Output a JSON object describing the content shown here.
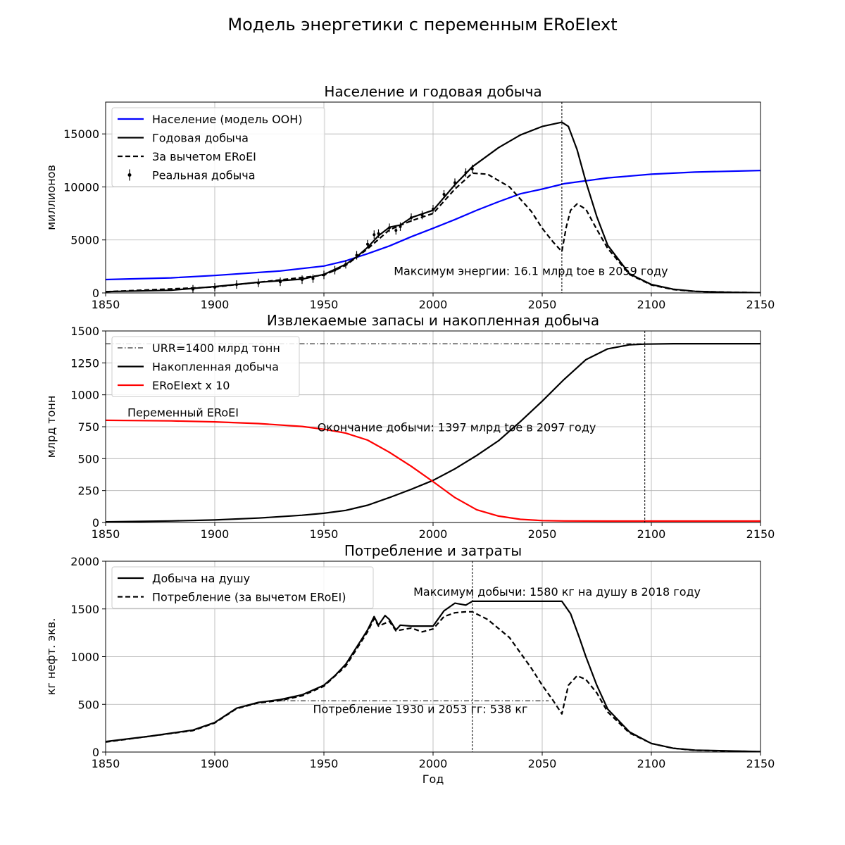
{
  "suptitle": "Модель энергетики с переменным ERoEIext",
  "xlabel": "Год",
  "chart_data": [
    {
      "type": "line",
      "title": "Население и годовая добыча",
      "ylabel": "миллионов",
      "xlim": [
        1850,
        2150
      ],
      "ylim": [
        0,
        18000
      ],
      "xticks": [
        1850,
        1900,
        1950,
        2000,
        2050,
        2100,
        2150
      ],
      "yticks": [
        0,
        5000,
        10000,
        15000
      ],
      "grid": true,
      "legend_position": "top-left",
      "series": [
        {
          "name": "Население (модель ООН)",
          "color": "#0000ff",
          "style": "solid",
          "x": [
            1850,
            1880,
            1900,
            1930,
            1950,
            1960,
            1970,
            1980,
            1990,
            2000,
            2010,
            2020,
            2030,
            2040,
            2050,
            2060,
            2080,
            2100,
            2120,
            2150
          ],
          "y": [
            1260,
            1420,
            1650,
            2070,
            2540,
            3030,
            3700,
            4430,
            5300,
            6100,
            6920,
            7800,
            8600,
            9350,
            9800,
            10300,
            10850,
            11200,
            11400,
            11550
          ]
        },
        {
          "name": "Годовая добыча",
          "color": "#000000",
          "style": "solid",
          "x": [
            1850,
            1880,
            1900,
            1920,
            1940,
            1950,
            1960,
            1965,
            1970,
            1975,
            1980,
            1985,
            1990,
            2000,
            2010,
            2018,
            2030,
            2040,
            2050,
            2059,
            2062,
            2066,
            2070,
            2075,
            2080,
            2090,
            2100,
            2110,
            2120,
            2135,
            2150
          ],
          "y": [
            120,
            250,
            600,
            1000,
            1300,
            1750,
            2700,
            3400,
            4300,
            5400,
            6200,
            6400,
            7100,
            7800,
            10200,
            11900,
            13700,
            14900,
            15700,
            16100,
            15700,
            13500,
            10500,
            7200,
            4500,
            1800,
            800,
            350,
            150,
            60,
            20
          ]
        },
        {
          "name": "За вычетом ERoEI",
          "color": "#000000",
          "style": "dashed",
          "x": [
            1850,
            1900,
            1950,
            1960,
            1970,
            1980,
            1990,
            2000,
            2010,
            2018,
            2025,
            2035,
            2045,
            2050,
            2055,
            2059,
            2061,
            2063,
            2066,
            2070,
            2075,
            2080,
            2090,
            2100,
            2110,
            2120,
            2150
          ],
          "y": [
            110,
            560,
            1680,
            2600,
            4150,
            5950,
            6800,
            7500,
            9800,
            11300,
            11200,
            10000,
            7700,
            6100,
            4800,
            3900,
            6200,
            7800,
            8400,
            7900,
            6000,
            4200,
            1750,
            750,
            320,
            140,
            15
          ]
        },
        {
          "name": "Реальная добыча",
          "color": "#000000",
          "style": "errorbar",
          "x": [
            1890,
            1900,
            1910,
            1920,
            1930,
            1940,
            1945,
            1950,
            1955,
            1960,
            1965,
            1970,
            1973,
            1975,
            1980,
            1983,
            1985,
            1990,
            1995,
            2000,
            2005,
            2010,
            2015,
            2018
          ],
          "y": [
            350,
            530,
            790,
            950,
            1050,
            1250,
            1350,
            1700,
            2150,
            2700,
            3550,
            4600,
            5500,
            5600,
            6150,
            5900,
            6250,
            7100,
            7350,
            7900,
            9300,
            10400,
            11350,
            11700
          ],
          "yerr": 400
        }
      ],
      "vlines": [
        {
          "x": 2059,
          "style": "dashed"
        }
      ],
      "annotations": [
        {
          "text": "Максимум энергии: 16.1 млрд toe в 2059 году",
          "x": 1982,
          "y": 1700
        }
      ]
    },
    {
      "type": "line",
      "title": "Извлекаемые запасы и накопленная добыча",
      "ylabel": "млрд тонн",
      "xlim": [
        1850,
        2150
      ],
      "ylim": [
        0,
        1500
      ],
      "xticks": [
        1850,
        1900,
        1950,
        2000,
        2050,
        2100,
        2150
      ],
      "yticks": [
        0,
        250,
        500,
        750,
        1000,
        1250,
        1500
      ],
      "grid": true,
      "legend_position": "top-left",
      "series": [
        {
          "name": "URR=1400 млрд тонн",
          "color": "#000000",
          "style": "dashdot",
          "x": [
            1850,
            2150
          ],
          "y": [
            1400,
            1400
          ]
        },
        {
          "name": "Накопленная добыча",
          "color": "#000000",
          "style": "solid",
          "x": [
            1850,
            1880,
            1900,
            1920,
            1940,
            1950,
            1960,
            1970,
            1980,
            1990,
            2000,
            2010,
            2020,
            2030,
            2040,
            2050,
            2060,
            2070,
            2080,
            2090,
            2097,
            2110,
            2150
          ],
          "y": [
            5,
            12,
            20,
            35,
            57,
            72,
            95,
            135,
            195,
            260,
            330,
            420,
            525,
            640,
            790,
            950,
            1120,
            1275,
            1360,
            1392,
            1397,
            1400,
            1400
          ]
        },
        {
          "name": "ERoEIext x 10",
          "color": "#ff0000",
          "style": "solid",
          "x": [
            1850,
            1880,
            1900,
            1920,
            1940,
            1950,
            1960,
            1970,
            1980,
            1990,
            2000,
            2010,
            2020,
            2030,
            2040,
            2050,
            2060,
            2080,
            2100,
            2150
          ],
          "y": [
            800,
            796,
            788,
            775,
            752,
            730,
            700,
            645,
            550,
            440,
            320,
            195,
            100,
            50,
            25,
            15,
            12,
            11,
            11,
            11
          ]
        }
      ],
      "vlines": [
        {
          "x": 2097,
          "style": "dashed"
        }
      ],
      "annotations": [
        {
          "text": "Переменный ERoEI",
          "x": 1860,
          "y": 830
        },
        {
          "text": "Окончание добычи: 1397 млрд toe в 2097 году",
          "x": 1947,
          "y": 715
        }
      ]
    },
    {
      "type": "line",
      "title": "Потребление и затраты",
      "ylabel": "кг нефт. экв.",
      "xlabel": "Год",
      "xlim": [
        1850,
        2150
      ],
      "ylim": [
        0,
        2000
      ],
      "xticks": [
        1850,
        1900,
        1950,
        2000,
        2050,
        2100,
        2150
      ],
      "yticks": [
        0,
        500,
        1000,
        1500,
        2000
      ],
      "grid": true,
      "legend_position": "top-left",
      "series": [
        {
          "name": "Добыча на душу",
          "color": "#000000",
          "style": "solid",
          "x": [
            1850,
            1870,
            1890,
            1900,
            1910,
            1920,
            1930,
            1940,
            1950,
            1955,
            1960,
            1965,
            1970,
            1973,
            1975,
            1978,
            1980,
            1983,
            1985,
            1990,
            1995,
            2000,
            2005,
            2010,
            2015,
            2018,
            2020,
            2030,
            2040,
            2050,
            2059,
            2063,
            2067,
            2070,
            2075,
            2080,
            2090,
            2100,
            2110,
            2120,
            2150
          ],
          "y": [
            110,
            165,
            230,
            310,
            460,
            520,
            550,
            600,
            700,
            800,
            920,
            1100,
            1280,
            1420,
            1330,
            1430,
            1390,
            1280,
            1330,
            1320,
            1320,
            1320,
            1480,
            1560,
            1540,
            1580,
            1580,
            1580,
            1580,
            1580,
            1580,
            1450,
            1200,
            1000,
            700,
            450,
            210,
            90,
            40,
            20,
            5
          ]
        },
        {
          "name": "Потребление (за вычетом ERoEI)",
          "color": "#000000",
          "style": "dashed",
          "x": [
            1850,
            1890,
            1900,
            1910,
            1920,
            1930,
            1940,
            1950,
            1960,
            1970,
            1973,
            1975,
            1980,
            1983,
            1990,
            1995,
            2000,
            2005,
            2010,
            2015,
            2018,
            2025,
            2035,
            2045,
            2050,
            2055,
            2059,
            2062,
            2066,
            2070,
            2075,
            2080,
            2090,
            2100,
            2110,
            2120,
            2150
          ],
          "y": [
            105,
            225,
            305,
            455,
            515,
            540,
            590,
            690,
            900,
            1260,
            1400,
            1320,
            1370,
            1270,
            1300,
            1260,
            1290,
            1420,
            1460,
            1470,
            1470,
            1390,
            1200,
            880,
            700,
            540,
            400,
            700,
            800,
            760,
            620,
            420,
            200,
            90,
            40,
            18,
            4
          ]
        }
      ],
      "vlines": [
        {
          "x": 2018,
          "style": "dashed"
        }
      ],
      "hlines": [
        {
          "y": 538,
          "x1": 1930,
          "x2": 2053,
          "style": "dashdot"
        }
      ],
      "annotations": [
        {
          "text": "Максимум добычи: 1580 кг на душу в 2018 году",
          "x": 1991,
          "y": 1640
        },
        {
          "text": "Потребление 1930 и 2053 гг: 538 кг",
          "x": 1945,
          "y": 410
        }
      ]
    }
  ]
}
